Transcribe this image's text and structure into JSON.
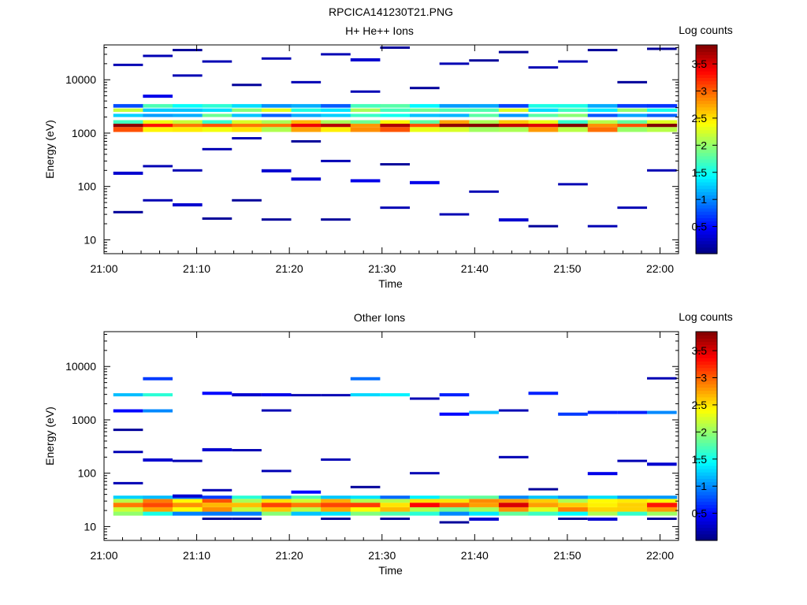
{
  "figure": {
    "title": "RPCICA141230T21.PNG"
  },
  "chart_data": [
    {
      "type": "heatmap",
      "title": "H+ He++ Ions",
      "xlabel": "Time",
      "ylabel": "Energy (eV)",
      "xticks": [
        "21:00",
        "21:10",
        "21:20",
        "21:30",
        "21:40",
        "21:50",
        "22:00"
      ],
      "yticks": [
        "10",
        "100",
        "1000",
        "10000"
      ],
      "yscale": "log",
      "xrange_min": [
        0,
        62
      ],
      "ylim": [
        5.5,
        45000
      ],
      "colorbar": {
        "label": "Log counts",
        "ticks": [
          "0.5",
          "1",
          "1.5",
          "2",
          "2.5",
          "3",
          "3.5"
        ],
        "range": [
          0,
          3.85
        ]
      },
      "time_bins_min": [
        1,
        4.2,
        7.4,
        10.6,
        13.8,
        17.0,
        20.2,
        23.4,
        26.6,
        29.8,
        33.0,
        36.2,
        39.4,
        42.6,
        45.8,
        49.0,
        52.2,
        55.4,
        58.6,
        61.8
      ],
      "bands": [
        {
          "e": [
            1050,
            1300
          ],
          "v": 2.6
        },
        {
          "e": [
            1300,
            1500
          ],
          "v": 3.3
        },
        {
          "e": [
            1500,
            1750
          ],
          "v": 2.2
        },
        {
          "e": [
            2000,
            2300
          ],
          "v": 1.4
        },
        {
          "e": [
            2500,
            2900
          ],
          "v": 1.7
        },
        {
          "e": [
            3000,
            3500
          ],
          "v": 1.2
        }
      ],
      "sparse_lines": [
        {
          "t0": 1,
          "t1": 4.2,
          "e": 19000,
          "v": 0.2
        },
        {
          "t0": 1,
          "t1": 4.2,
          "e": 180,
          "v": 0.3
        },
        {
          "t0": 1,
          "t1": 4.2,
          "e": 33,
          "v": 0.1
        },
        {
          "t0": 4.2,
          "t1": 7.4,
          "e": 28000,
          "v": 0.2
        },
        {
          "t0": 4.2,
          "t1": 7.4,
          "e": 5000,
          "v": 0.4
        },
        {
          "t0": 4.2,
          "t1": 7.4,
          "e": 240,
          "v": 0.2
        },
        {
          "t0": 4.2,
          "t1": 7.4,
          "e": 55,
          "v": 0.2
        },
        {
          "t0": 7.4,
          "t1": 10.6,
          "e": 36000,
          "v": 0.1
        },
        {
          "t0": 7.4,
          "t1": 10.6,
          "e": 12000,
          "v": 0.2
        },
        {
          "t0": 7.4,
          "t1": 10.6,
          "e": 200,
          "v": 0.2
        },
        {
          "t0": 7.4,
          "t1": 10.6,
          "e": 46,
          "v": 0.3
        },
        {
          "t0": 10.6,
          "t1": 13.8,
          "e": 22000,
          "v": 0.2
        },
        {
          "t0": 10.6,
          "t1": 13.8,
          "e": 500,
          "v": 0.2
        },
        {
          "t0": 10.6,
          "t1": 13.8,
          "e": 25,
          "v": 0.1
        },
        {
          "t0": 13.8,
          "t1": 17,
          "e": 8000,
          "v": 0.1
        },
        {
          "t0": 13.8,
          "t1": 17,
          "e": 800,
          "v": 0.2
        },
        {
          "t0": 13.8,
          "t1": 17,
          "e": 55,
          "v": 0.1
        },
        {
          "t0": 17,
          "t1": 20.2,
          "e": 25000,
          "v": 0.2
        },
        {
          "t0": 17,
          "t1": 20.2,
          "e": 200,
          "v": 0.3
        },
        {
          "t0": 17,
          "t1": 20.2,
          "e": 24,
          "v": 0.1
        },
        {
          "t0": 20.2,
          "t1": 23.4,
          "e": 9000,
          "v": 0.2
        },
        {
          "t0": 20.2,
          "t1": 23.4,
          "e": 700,
          "v": 0.1
        },
        {
          "t0": 20.2,
          "t1": 23.4,
          "e": 140,
          "v": 0.3
        },
        {
          "t0": 23.4,
          "t1": 26.6,
          "e": 30000,
          "v": 0.2
        },
        {
          "t0": 23.4,
          "t1": 26.6,
          "e": 300,
          "v": 0.2
        },
        {
          "t0": 23.4,
          "t1": 26.6,
          "e": 24,
          "v": 0.1
        },
        {
          "t0": 26.6,
          "t1": 29.8,
          "e": 24000,
          "v": 0.3
        },
        {
          "t0": 26.6,
          "t1": 29.8,
          "e": 6000,
          "v": 0.2
        },
        {
          "t0": 26.6,
          "t1": 29.8,
          "e": 130,
          "v": 0.4
        },
        {
          "t0": 29.8,
          "t1": 33,
          "e": 40000,
          "v": 0.1
        },
        {
          "t0": 29.8,
          "t1": 33,
          "e": 260,
          "v": 0.1
        },
        {
          "t0": 29.8,
          "t1": 33,
          "e": 40,
          "v": 0.2
        },
        {
          "t0": 33,
          "t1": 36.2,
          "e": 7000,
          "v": 0.1
        },
        {
          "t0": 33,
          "t1": 36.2,
          "e": 120,
          "v": 0.4
        },
        {
          "t0": 36.2,
          "t1": 39.4,
          "e": 20000,
          "v": 0.2
        },
        {
          "t0": 36.2,
          "t1": 39.4,
          "e": 30,
          "v": 0.2
        },
        {
          "t0": 39.4,
          "t1": 42.6,
          "e": 23000,
          "v": 0.1
        },
        {
          "t0": 39.4,
          "t1": 42.6,
          "e": 80,
          "v": 0.2
        },
        {
          "t0": 42.6,
          "t1": 45.8,
          "e": 33000,
          "v": 0.1
        },
        {
          "t0": 42.6,
          "t1": 45.8,
          "e": 24,
          "v": 0.3
        },
        {
          "t0": 45.8,
          "t1": 49,
          "e": 17000,
          "v": 0.2
        },
        {
          "t0": 45.8,
          "t1": 49,
          "e": 18,
          "v": 0.1
        },
        {
          "t0": 49,
          "t1": 52.2,
          "e": 22000,
          "v": 0.2
        },
        {
          "t0": 49,
          "t1": 52.2,
          "e": 110,
          "v": 0.2
        },
        {
          "t0": 52.2,
          "t1": 55.4,
          "e": 36000,
          "v": 0.1
        },
        {
          "t0": 52.2,
          "t1": 55.4,
          "e": 18,
          "v": 0.2
        },
        {
          "t0": 55.4,
          "t1": 58.6,
          "e": 9000,
          "v": 0.1
        },
        {
          "t0": 55.4,
          "t1": 58.6,
          "e": 40,
          "v": 0.2
        },
        {
          "t0": 58.6,
          "t1": 61.8,
          "e": 38000,
          "v": 0.1
        },
        {
          "t0": 58.6,
          "t1": 61.8,
          "e": 200,
          "v": 0.2
        }
      ]
    },
    {
      "type": "heatmap",
      "title": "Other Ions",
      "xlabel": "Time",
      "ylabel": "Energy (eV)",
      "xticks": [
        "21:00",
        "21:10",
        "21:20",
        "21:30",
        "21:40",
        "21:50",
        "22:00"
      ],
      "yticks": [
        "10",
        "100",
        "1000",
        "10000"
      ],
      "yscale": "log",
      "xrange_min": [
        0,
        62
      ],
      "ylim": [
        5.5,
        45000
      ],
      "colorbar": {
        "label": "Log counts",
        "ticks": [
          "0.5",
          "1",
          "1.5",
          "2",
          "2.5",
          "3",
          "3.5"
        ],
        "range": [
          0,
          3.85
        ]
      },
      "time_bins_min": [
        1,
        4.2,
        7.4,
        10.6,
        13.8,
        17.0,
        20.2,
        23.4,
        26.6,
        29.8,
        33.0,
        36.2,
        39.4,
        42.6,
        45.8,
        49.0,
        52.2,
        55.4,
        58.6,
        61.8
      ],
      "bands": [
        {
          "e": [
            16,
            19
          ],
          "v": 1.5
        },
        {
          "e": [
            19,
            23
          ],
          "v": 2.4
        },
        {
          "e": [
            23,
            28
          ],
          "v": 3.0
        },
        {
          "e": [
            28,
            33
          ],
          "v": 2.6
        },
        {
          "e": [
            33,
            38
          ],
          "v": 1.3
        }
      ],
      "sparse_lines": [
        {
          "t0": 1,
          "t1": 4.2,
          "e": 3000,
          "v": 1.2
        },
        {
          "t0": 1,
          "t1": 4.2,
          "e": 1500,
          "v": 0.5
        },
        {
          "t0": 1,
          "t1": 4.2,
          "e": 650,
          "v": 0.1
        },
        {
          "t0": 1,
          "t1": 4.2,
          "e": 250,
          "v": 0.2
        },
        {
          "t0": 1,
          "t1": 4.2,
          "e": 65,
          "v": 0.2
        },
        {
          "t0": 4.2,
          "t1": 7.4,
          "e": 6000,
          "v": 0.7
        },
        {
          "t0": 4.2,
          "t1": 7.4,
          "e": 3000,
          "v": 1.6
        },
        {
          "t0": 4.2,
          "t1": 7.4,
          "e": 1500,
          "v": 1.0
        },
        {
          "t0": 4.2,
          "t1": 7.4,
          "e": 180,
          "v": 0.3
        },
        {
          "t0": 7.4,
          "t1": 10.6,
          "e": 170,
          "v": 0.2
        },
        {
          "t0": 7.4,
          "t1": 10.6,
          "e": 38,
          "v": 0.3
        },
        {
          "t0": 10.6,
          "t1": 13.8,
          "e": 3200,
          "v": 0.5
        },
        {
          "t0": 10.6,
          "t1": 13.8,
          "e": 280,
          "v": 0.3
        },
        {
          "t0": 10.6,
          "t1": 13.8,
          "e": 48,
          "v": 0.2
        },
        {
          "t0": 10.6,
          "t1": 13.8,
          "e": 14,
          "v": 0.1
        },
        {
          "t0": 13.8,
          "t1": 17,
          "e": 3000,
          "v": 0.3
        },
        {
          "t0": 13.8,
          "t1": 17,
          "e": 270,
          "v": 0.2
        },
        {
          "t0": 13.8,
          "t1": 17,
          "e": 14,
          "v": 0.1
        },
        {
          "t0": 17,
          "t1": 20.2,
          "e": 3000,
          "v": 0.4
        },
        {
          "t0": 17,
          "t1": 20.2,
          "e": 1500,
          "v": 0.2
        },
        {
          "t0": 17,
          "t1": 20.2,
          "e": 110,
          "v": 0.2
        },
        {
          "t0": 20.2,
          "t1": 23.4,
          "e": 2900,
          "v": 0.2
        },
        {
          "t0": 20.2,
          "t1": 23.4,
          "e": 45,
          "v": 0.5
        },
        {
          "t0": 23.4,
          "t1": 26.6,
          "e": 2900,
          "v": 0.2
        },
        {
          "t0": 23.4,
          "t1": 26.6,
          "e": 180,
          "v": 0.2
        },
        {
          "t0": 23.4,
          "t1": 26.6,
          "e": 14,
          "v": 0.1
        },
        {
          "t0": 26.6,
          "t1": 29.8,
          "e": 6000,
          "v": 0.9
        },
        {
          "t0": 26.6,
          "t1": 29.8,
          "e": 3000,
          "v": 1.3
        },
        {
          "t0": 26.6,
          "t1": 29.8,
          "e": 55,
          "v": 0.1
        },
        {
          "t0": 29.8,
          "t1": 33,
          "e": 3000,
          "v": 1.4
        },
        {
          "t0": 29.8,
          "t1": 33,
          "e": 14,
          "v": 0.1
        },
        {
          "t0": 33,
          "t1": 36.2,
          "e": 2500,
          "v": 0.2
        },
        {
          "t0": 33,
          "t1": 36.2,
          "e": 100,
          "v": 0.2
        },
        {
          "t0": 36.2,
          "t1": 39.4,
          "e": 3000,
          "v": 0.6
        },
        {
          "t0": 36.2,
          "t1": 39.4,
          "e": 1300,
          "v": 0.5
        },
        {
          "t0": 36.2,
          "t1": 39.4,
          "e": 12,
          "v": 0.1
        },
        {
          "t0": 39.4,
          "t1": 42.6,
          "e": 1400,
          "v": 1.2
        },
        {
          "t0": 39.4,
          "t1": 42.6,
          "e": 14,
          "v": 0.3
        },
        {
          "t0": 42.6,
          "t1": 45.8,
          "e": 1500,
          "v": 0.2
        },
        {
          "t0": 42.6,
          "t1": 45.8,
          "e": 200,
          "v": 0.2
        },
        {
          "t0": 45.8,
          "t1": 49,
          "e": 3200,
          "v": 0.6
        },
        {
          "t0": 45.8,
          "t1": 49,
          "e": 50,
          "v": 0.1
        },
        {
          "t0": 49,
          "t1": 52.2,
          "e": 1300,
          "v": 0.7
        },
        {
          "t0": 49,
          "t1": 52.2,
          "e": 14,
          "v": 0.1
        },
        {
          "t0": 52.2,
          "t1": 55.4,
          "e": 1400,
          "v": 0.6
        },
        {
          "t0": 52.2,
          "t1": 55.4,
          "e": 100,
          "v": 0.4
        },
        {
          "t0": 52.2,
          "t1": 55.4,
          "e": 14,
          "v": 0.3
        },
        {
          "t0": 55.4,
          "t1": 58.6,
          "e": 1400,
          "v": 0.6
        },
        {
          "t0": 55.4,
          "t1": 58.6,
          "e": 170,
          "v": 0.2
        },
        {
          "t0": 58.6,
          "t1": 61.8,
          "e": 6000,
          "v": 0.2
        },
        {
          "t0": 58.6,
          "t1": 61.8,
          "e": 1400,
          "v": 1.0
        },
        {
          "t0": 58.6,
          "t1": 61.8,
          "e": 150,
          "v": 0.3
        },
        {
          "t0": 58.6,
          "t1": 61.8,
          "e": 14,
          "v": 0.1
        }
      ]
    }
  ]
}
